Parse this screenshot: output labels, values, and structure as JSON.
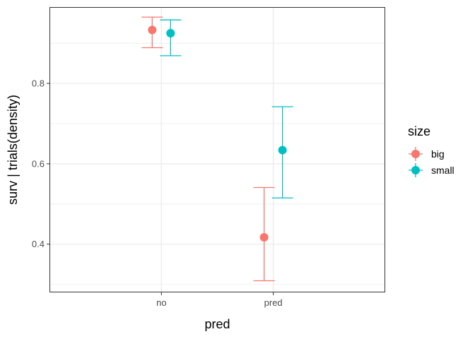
{
  "chart_data": {
    "type": "scatter",
    "title": "",
    "xlabel": "pred",
    "ylabel": "surv | trials(density)",
    "categories": [
      "no",
      "pred"
    ],
    "ylim": [
      0.28,
      0.99
    ],
    "yticks": [
      0.4,
      0.6,
      0.8
    ],
    "ytick_labels": [
      "0.4",
      "0.6",
      "0.8"
    ],
    "grid": true,
    "legend": {
      "title": "size",
      "placement": "right"
    },
    "series": [
      {
        "name": "big",
        "color": "#F8766D",
        "points": [
          {
            "x": "no",
            "y": 0.933,
            "lower": 0.889,
            "upper": 0.965
          },
          {
            "x": "pred",
            "y": 0.417,
            "lower": 0.309,
            "upper": 0.541
          }
        ]
      },
      {
        "name": "small",
        "color": "#00BFC4",
        "points": [
          {
            "x": "no",
            "y": 0.925,
            "lower": 0.869,
            "upper": 0.958
          },
          {
            "x": "pred",
            "y": 0.634,
            "lower": 0.515,
            "upper": 0.742
          }
        ]
      }
    ]
  }
}
